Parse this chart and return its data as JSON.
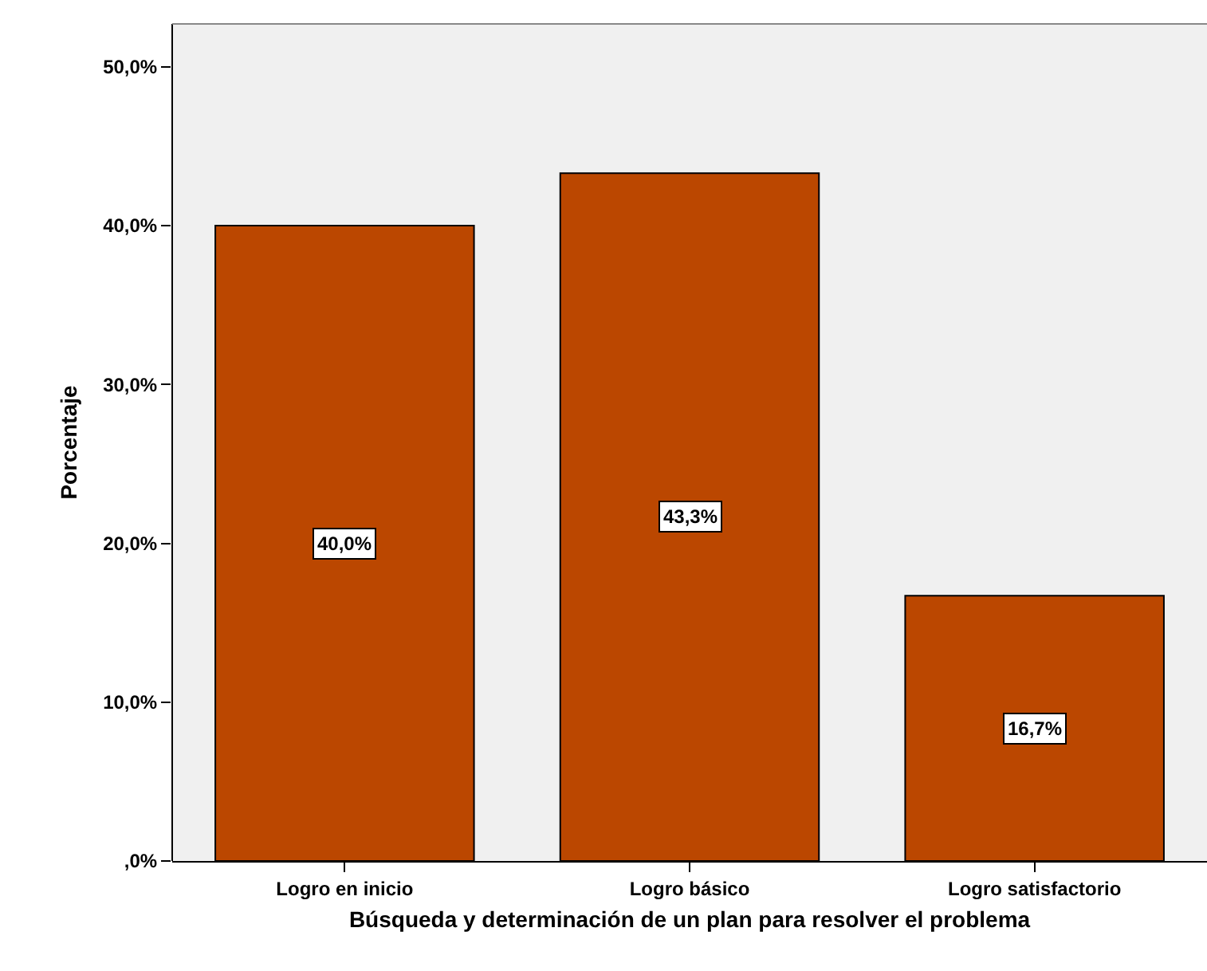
{
  "chart_data": {
    "type": "bar",
    "xlabel": "Búsqueda y determinación de un plan para resolver el problema",
    "ylabel": "Porcentaje",
    "categories": [
      "Logro en inicio",
      "Logro básico",
      "Logro satisfactorio"
    ],
    "values": [
      40.0,
      43.3,
      16.7
    ],
    "color": "#bb4700",
    "value_labels": [
      "40,0%",
      "43,3%",
      "16,7%"
    ],
    "ylim": [
      0,
      52.7
    ],
    "yticks": [
      {
        "value": 0,
        "label": ",0%"
      },
      {
        "value": 10,
        "label": "10,0%"
      },
      {
        "value": 20,
        "label": "20,0%"
      },
      {
        "value": 30,
        "label": "30,0%"
      },
      {
        "value": 40,
        "label": "40,0%"
      },
      {
        "value": 50,
        "label": "50,0%"
      }
    ],
    "grid": false
  }
}
